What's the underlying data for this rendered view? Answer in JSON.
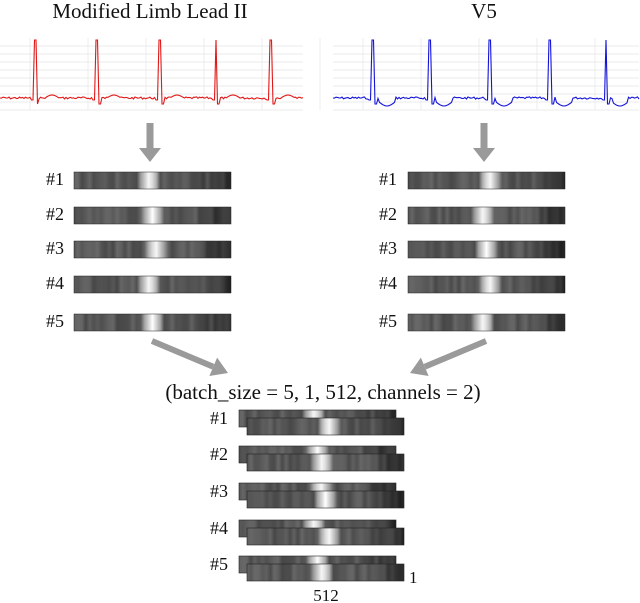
{
  "leads": [
    {
      "title": "Modified Limb Lead II",
      "trace_color": "#e01818"
    },
    {
      "title": "V5",
      "trace_color": "#1414d8"
    }
  ],
  "segment_labels": [
    "#1",
    "#2",
    "#3",
    "#4",
    "#5"
  ],
  "combined": {
    "shape_label": "(batch_size = 5, 1, 512, channels = 2)",
    "labels": [
      "#1",
      "#2",
      "#3",
      "#4",
      "#5"
    ],
    "width_label": "512",
    "height_label": "1"
  },
  "arrow_color": "#9a9a9a"
}
